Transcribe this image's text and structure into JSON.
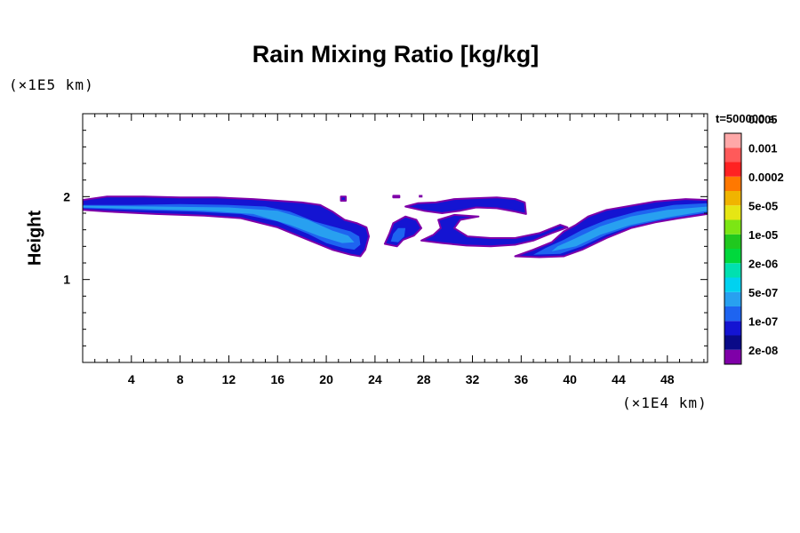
{
  "chart_data": {
    "type": "heatmap",
    "title": "Rain Mixing Ratio [kg/kg]",
    "ylabel": "Height",
    "x_unit": "(×1E4 km)",
    "y_unit": "(×1E5 km)",
    "time_label": "t=500000 s",
    "xlim": [
      0,
      51.3
    ],
    "ylim": [
      0,
      3.0
    ],
    "x_ticks": [
      4,
      8,
      12,
      16,
      20,
      24,
      28,
      32,
      36,
      40,
      44,
      48
    ],
    "y_ticks": [
      1,
      2
    ],
    "x_minor_step": 1,
    "y_minor_step": 0.2,
    "colorbar": {
      "colors": [
        "#7f00a8",
        "#0a0a88",
        "#1414d2",
        "#1e64f0",
        "#28a0f0",
        "#00d2f0",
        "#00e0b0",
        "#00d83c",
        "#20c81e",
        "#7ce614",
        "#e6e614",
        "#f0b400",
        "#ff7800",
        "#ff2222",
        "#ff5a5a",
        "#ffa8a8"
      ],
      "labels": [
        "2e-08",
        "1e-07",
        "5e-07",
        "2e-06",
        "1e-05",
        "5e-05",
        "0.0002",
        "0.001",
        "0.005"
      ]
    },
    "features": [
      {
        "name": "left-band",
        "fill_index": 2,
        "points": [
          [
            0,
            1.84
          ],
          [
            2,
            1.82
          ],
          [
            6,
            1.79
          ],
          [
            10,
            1.77
          ],
          [
            13,
            1.74
          ],
          [
            16,
            1.63
          ],
          [
            18.5,
            1.48
          ],
          [
            20.5,
            1.36
          ],
          [
            22,
            1.3
          ],
          [
            22.8,
            1.28
          ],
          [
            23.2,
            1.36
          ],
          [
            23.5,
            1.52
          ],
          [
            23.3,
            1.63
          ],
          [
            22.5,
            1.68
          ],
          [
            21.5,
            1.72
          ],
          [
            20.5,
            1.82
          ],
          [
            19.5,
            1.9
          ],
          [
            18,
            1.93
          ],
          [
            16,
            1.95
          ],
          [
            14,
            1.97
          ],
          [
            11,
            1.99
          ],
          [
            8,
            1.99
          ],
          [
            5,
            2.0
          ],
          [
            2,
            2.0
          ],
          [
            0,
            1.96
          ]
        ]
      },
      {
        "name": "left-band-core",
        "fill_index": 3,
        "points": [
          [
            0,
            1.86
          ],
          [
            4,
            1.84
          ],
          [
            9,
            1.82
          ],
          [
            13,
            1.79
          ],
          [
            16,
            1.7
          ],
          [
            18.5,
            1.55
          ],
          [
            20,
            1.44
          ],
          [
            21.4,
            1.38
          ],
          [
            22.3,
            1.36
          ],
          [
            22.8,
            1.42
          ],
          [
            22.7,
            1.52
          ],
          [
            22,
            1.58
          ],
          [
            21,
            1.62
          ],
          [
            19,
            1.7
          ],
          [
            17,
            1.82
          ],
          [
            15,
            1.88
          ],
          [
            12,
            1.9
          ],
          [
            8,
            1.91
          ],
          [
            4,
            1.9
          ],
          [
            0,
            1.9
          ]
        ]
      },
      {
        "name": "left-band-inner",
        "fill_index": 4,
        "points": [
          [
            0,
            1.87
          ],
          [
            5,
            1.85
          ],
          [
            10,
            1.83
          ],
          [
            14,
            1.79
          ],
          [
            17,
            1.66
          ],
          [
            19.5,
            1.52
          ],
          [
            21.3,
            1.44
          ],
          [
            22.3,
            1.45
          ],
          [
            21.8,
            1.53
          ],
          [
            20.5,
            1.59
          ],
          [
            18.5,
            1.72
          ],
          [
            16,
            1.83
          ],
          [
            12,
            1.87
          ],
          [
            6,
            1.88
          ],
          [
            0,
            1.89
          ]
        ]
      },
      {
        "name": "center-left-blob",
        "fill_index": 2,
        "points": [
          [
            24.8,
            1.43
          ],
          [
            25.8,
            1.4
          ],
          [
            26.3,
            1.48
          ],
          [
            27.2,
            1.53
          ],
          [
            27.8,
            1.62
          ],
          [
            27.4,
            1.72
          ],
          [
            26.5,
            1.76
          ],
          [
            25.5,
            1.68
          ],
          [
            25.2,
            1.56
          ]
        ]
      },
      {
        "name": "center-left-blob-core",
        "fill_index": 3,
        "points": [
          [
            25.3,
            1.46
          ],
          [
            25.9,
            1.45
          ],
          [
            26.4,
            1.52
          ],
          [
            26.5,
            1.62
          ],
          [
            25.9,
            1.62
          ],
          [
            25.5,
            1.55
          ]
        ]
      },
      {
        "name": "center-right-arc",
        "fill_index": 2,
        "points": [
          [
            27.8,
            1.47
          ],
          [
            29.5,
            1.44
          ],
          [
            31.5,
            1.41
          ],
          [
            33.5,
            1.4
          ],
          [
            35.5,
            1.42
          ],
          [
            37,
            1.47
          ],
          [
            38.5,
            1.56
          ],
          [
            39.8,
            1.63
          ],
          [
            39.2,
            1.66
          ],
          [
            37.5,
            1.56
          ],
          [
            35.5,
            1.5
          ],
          [
            33.5,
            1.5
          ],
          [
            31.6,
            1.52
          ],
          [
            30.5,
            1.62
          ],
          [
            31,
            1.72
          ],
          [
            32.5,
            1.76
          ],
          [
            30.5,
            1.78
          ],
          [
            29.2,
            1.72
          ],
          [
            29.4,
            1.62
          ],
          [
            28.8,
            1.54
          ]
        ]
      },
      {
        "name": "upper-right-arc",
        "fill_index": 2,
        "points": [
          [
            26.5,
            1.88
          ],
          [
            28,
            1.83
          ],
          [
            29.5,
            1.8
          ],
          [
            31,
            1.83
          ],
          [
            32.3,
            1.87
          ],
          [
            34,
            1.86
          ],
          [
            35.5,
            1.82
          ],
          [
            36.4,
            1.79
          ],
          [
            36.3,
            1.93
          ],
          [
            35.5,
            1.97
          ],
          [
            34,
            1.99
          ],
          [
            32,
            1.98
          ],
          [
            30.5,
            1.97
          ],
          [
            29,
            1.93
          ],
          [
            27.5,
            1.92
          ]
        ]
      },
      {
        "name": "right-band",
        "fill_index": 2,
        "points": [
          [
            35.5,
            1.28
          ],
          [
            37.5,
            1.27
          ],
          [
            39.5,
            1.28
          ],
          [
            41,
            1.36
          ],
          [
            43,
            1.5
          ],
          [
            45,
            1.62
          ],
          [
            47,
            1.69
          ],
          [
            49,
            1.74
          ],
          [
            51.3,
            1.79
          ],
          [
            51.3,
            1.96
          ],
          [
            49.5,
            1.97
          ],
          [
            47,
            1.94
          ],
          [
            45,
            1.89
          ],
          [
            43,
            1.84
          ],
          [
            41.5,
            1.76
          ],
          [
            40.5,
            1.66
          ],
          [
            39.5,
            1.58
          ],
          [
            38.5,
            1.45
          ],
          [
            37,
            1.36
          ]
        ]
      },
      {
        "name": "right-band-core",
        "fill_index": 3,
        "points": [
          [
            37,
            1.3
          ],
          [
            39.2,
            1.31
          ],
          [
            41,
            1.4
          ],
          [
            43,
            1.54
          ],
          [
            45,
            1.64
          ],
          [
            47.5,
            1.72
          ],
          [
            51.3,
            1.81
          ],
          [
            51.3,
            1.92
          ],
          [
            48.5,
            1.9
          ],
          [
            45.5,
            1.82
          ],
          [
            43,
            1.72
          ],
          [
            41,
            1.6
          ],
          [
            39.5,
            1.48
          ],
          [
            38,
            1.38
          ]
        ]
      },
      {
        "name": "right-band-inner",
        "fill_index": 4,
        "points": [
          [
            38.5,
            1.34
          ],
          [
            40.5,
            1.4
          ],
          [
            42.5,
            1.54
          ],
          [
            45,
            1.66
          ],
          [
            48,
            1.75
          ],
          [
            51.3,
            1.83
          ],
          [
            51.3,
            1.88
          ],
          [
            48,
            1.84
          ],
          [
            45,
            1.76
          ],
          [
            42.5,
            1.64
          ],
          [
            40.5,
            1.5
          ],
          [
            39,
            1.4
          ]
        ]
      },
      {
        "name": "small-speck-left",
        "fill_index": 2,
        "points": [
          [
            21.2,
            1.95
          ],
          [
            21.6,
            1.95
          ],
          [
            21.6,
            2.0
          ],
          [
            21.2,
            2.0
          ]
        ]
      },
      {
        "name": "small-speck-mid",
        "fill_index": 2,
        "points": [
          [
            25.5,
            1.99
          ],
          [
            26.0,
            1.99
          ],
          [
            26.0,
            2.01
          ],
          [
            25.5,
            2.01
          ]
        ]
      },
      {
        "name": "small-speck-right",
        "fill_index": 0,
        "points": [
          [
            27.6,
            1.99
          ],
          [
            27.9,
            1.99
          ],
          [
            27.9,
            2.02
          ],
          [
            27.6,
            2.02
          ]
        ]
      }
    ]
  }
}
